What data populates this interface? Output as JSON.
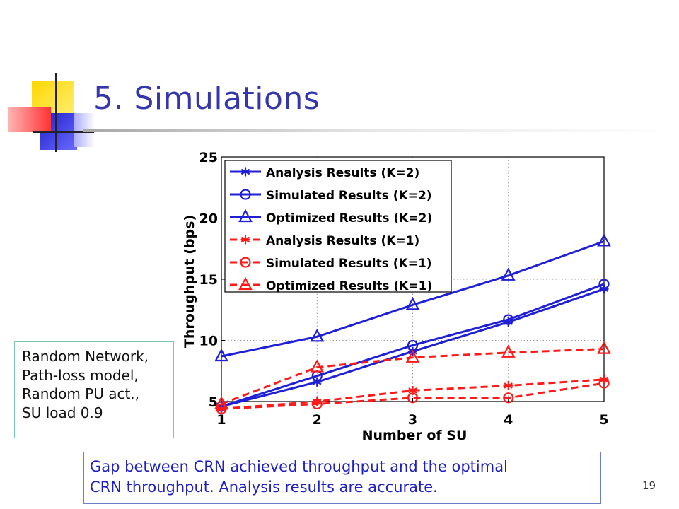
{
  "slide": {
    "title": "5. Simulations",
    "page_number": "19",
    "note_lines": [
      "Random Network,",
      "Path-loss model,",
      "Random PU act.,",
      "SU load 0.9"
    ],
    "caption_lines": [
      "Gap between CRN achieved throughput and the optimal",
      "CRN throughput. Analysis results are accurate."
    ]
  },
  "colors": {
    "title": "#3535ad",
    "k2": "#1f1fd6",
    "k1": "#ff1a1a"
  },
  "chart_data": {
    "type": "line",
    "xlabel": "Number of SU",
    "ylabel": "Throughput (bps)",
    "x": [
      1,
      2,
      3,
      4,
      5
    ],
    "xlim": [
      1,
      5
    ],
    "ylim": [
      5,
      25
    ],
    "xticks": [
      1,
      2,
      3,
      4,
      5
    ],
    "yticks": [
      5,
      10,
      15,
      20,
      25
    ],
    "grid": true,
    "legend_position": "top-left",
    "series": [
      {
        "name": "Analysis Results (K=2)",
        "values": [
          4.6,
          6.6,
          9.1,
          11.5,
          14.2
        ],
        "color": "#1f1fd6",
        "dash": "solid",
        "marker": "asterisk"
      },
      {
        "name": "Simulated Results (K=2)",
        "values": [
          4.6,
          7.1,
          9.6,
          11.7,
          14.6
        ],
        "color": "#1f1fd6",
        "dash": "solid",
        "marker": "circle"
      },
      {
        "name": "Optimized Results (K=2)",
        "values": [
          8.7,
          10.3,
          12.9,
          15.3,
          18.1
        ],
        "color": "#1f1fd6",
        "dash": "solid",
        "marker": "triangle"
      },
      {
        "name": "Analysis Results (K=1)",
        "values": [
          4.4,
          5.0,
          5.9,
          6.3,
          6.8
        ],
        "color": "#ff1a1a",
        "dash": "dashed",
        "marker": "asterisk"
      },
      {
        "name": "Simulated Results (K=1)",
        "values": [
          4.4,
          4.8,
          5.3,
          5.3,
          6.5
        ],
        "color": "#ff1a1a",
        "dash": "dashed",
        "marker": "circle"
      },
      {
        "name": "Optimized Results (K=1)",
        "values": [
          4.8,
          7.8,
          8.6,
          9.0,
          9.3
        ],
        "color": "#ff1a1a",
        "dash": "dashed",
        "marker": "triangle"
      }
    ]
  }
}
